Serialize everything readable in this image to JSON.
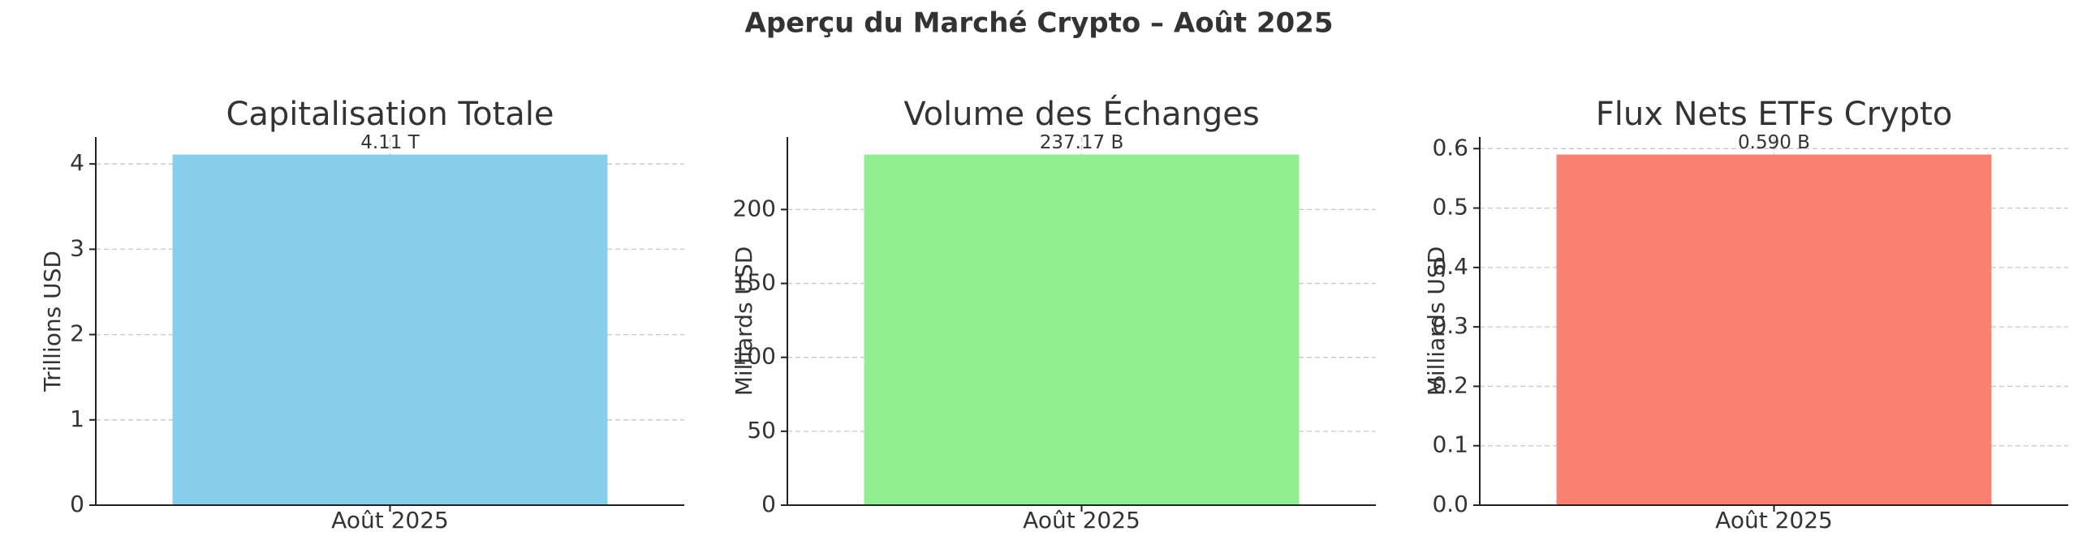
{
  "title": "Aperçu du Marché Crypto – Août 2025",
  "chart_data": [
    {
      "type": "bar",
      "title": "Capitalisation Totale",
      "ylabel": "Trillions USD",
      "categories": [
        "Août 2025"
      ],
      "values": [
        4.11
      ],
      "value_labels": [
        "4.11 T"
      ],
      "color": "#87ceeb",
      "ylim": [
        0,
        4.3155
      ],
      "yticks": [
        0,
        1,
        2,
        3,
        4
      ],
      "grid": true
    },
    {
      "type": "bar",
      "title": "Volume des Échanges",
      "ylabel": "Milliards USD",
      "categories": [
        "Août 2025"
      ],
      "values": [
        237.17
      ],
      "value_labels": [
        "237.17 B"
      ],
      "color": "#90ee90",
      "ylim": [
        0,
        249.03
      ],
      "yticks": [
        0,
        50,
        100,
        150,
        200
      ],
      "grid": true
    },
    {
      "type": "bar",
      "title": "Flux Nets ETFs Crypto",
      "ylabel": "Milliards USD",
      "categories": [
        "Août 2025"
      ],
      "values": [
        0.59
      ],
      "value_labels": [
        "0.590 B"
      ],
      "color": "#fa8072",
      "ylim": [
        0,
        0.6195
      ],
      "yticks": [
        {
          "value": 0,
          "label": "0.0"
        },
        0.1,
        0.2,
        0.3,
        0.4,
        0.5,
        0.6
      ],
      "grid": true
    }
  ]
}
